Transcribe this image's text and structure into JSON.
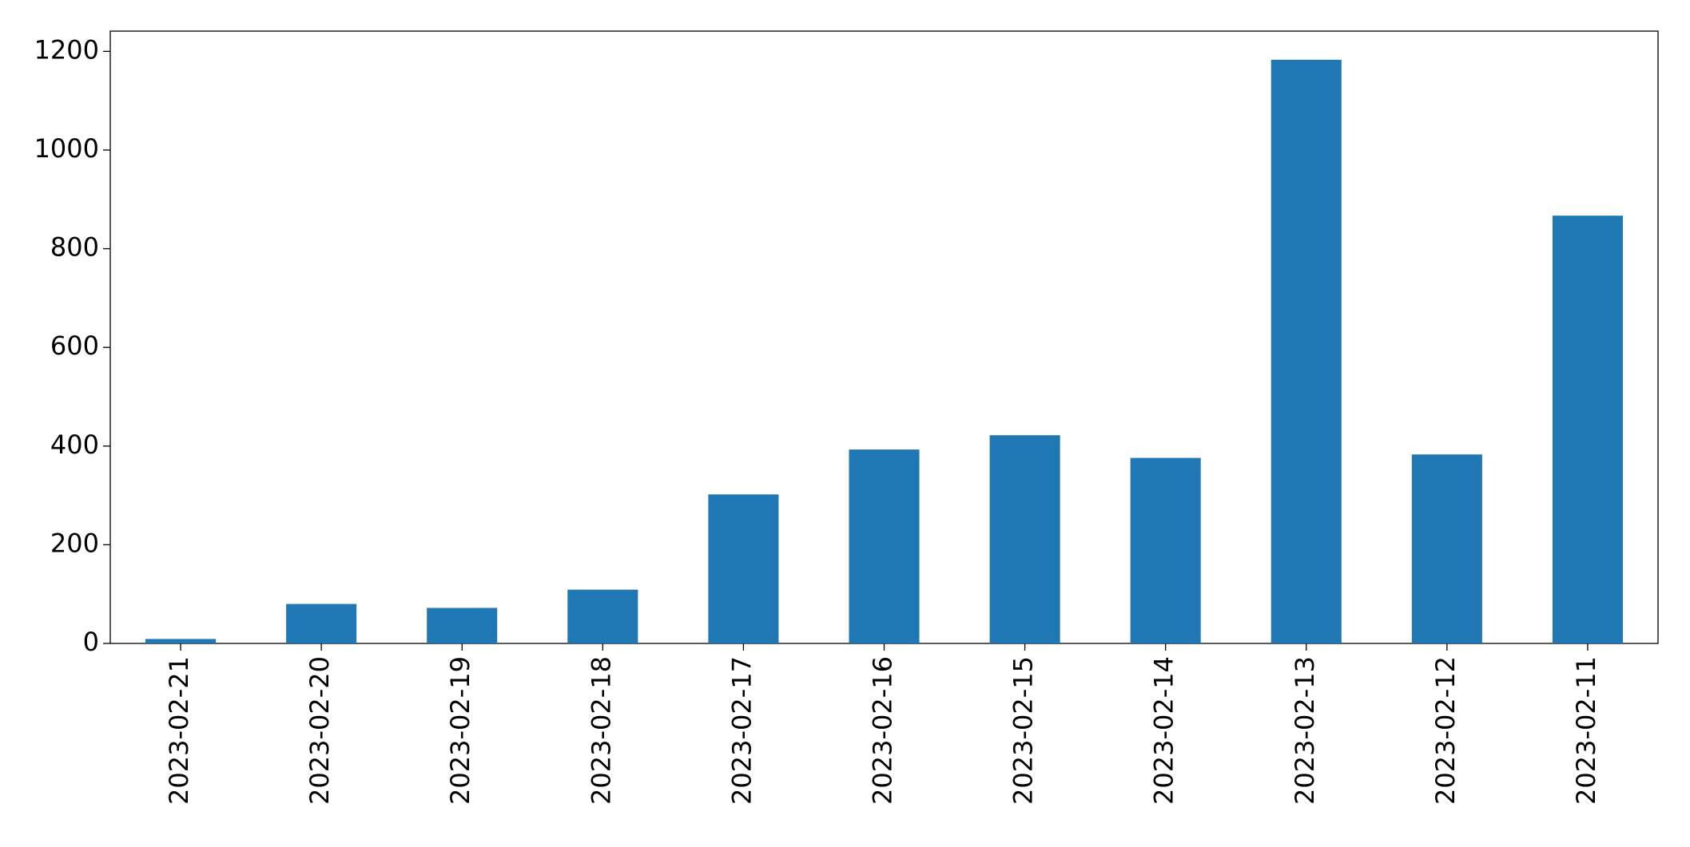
{
  "chart_data": {
    "type": "bar",
    "categories": [
      "2023-02-21",
      "2023-02-20",
      "2023-02-19",
      "2023-02-18",
      "2023-02-17",
      "2023-02-16",
      "2023-02-15",
      "2023-02-14",
      "2023-02-13",
      "2023-02-12",
      "2023-02-11"
    ],
    "values": [
      9,
      80,
      72,
      109,
      302,
      393,
      422,
      376,
      1183,
      383,
      867
    ],
    "color": "#1f77b4",
    "ylim": [
      0,
      1241
    ],
    "yticks": [
      0,
      200,
      400,
      600,
      800,
      1000,
      1200
    ],
    "grid": false
  }
}
